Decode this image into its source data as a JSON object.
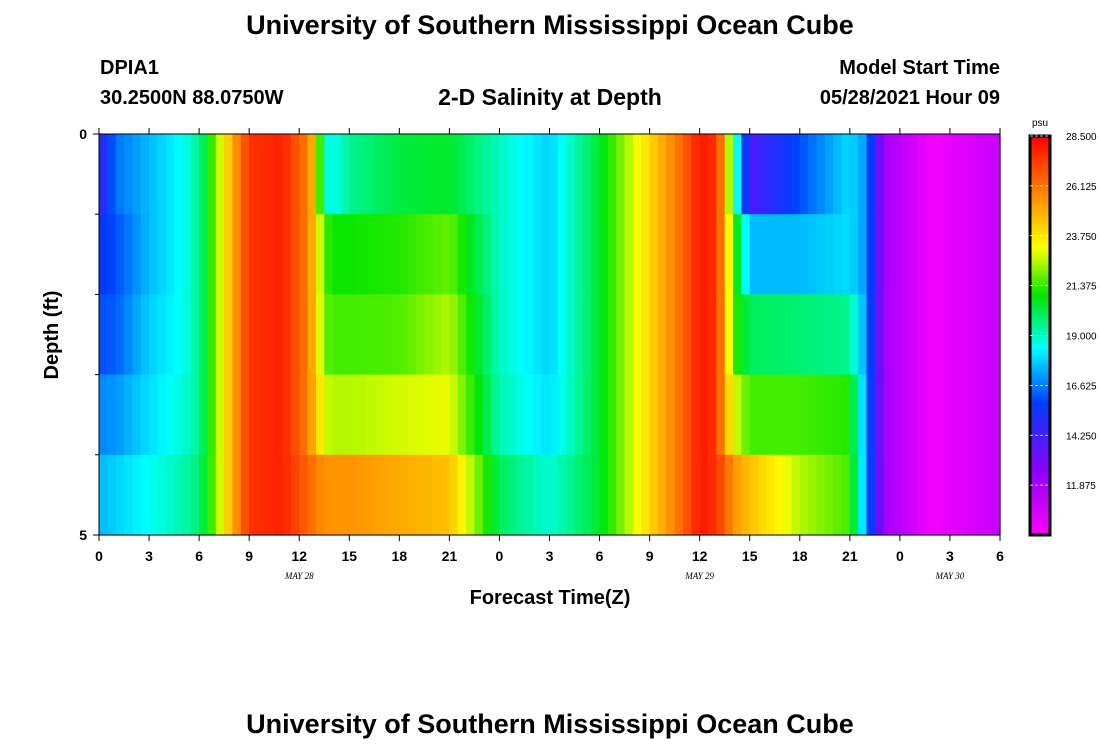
{
  "page": {
    "top_title": "University of Southern Mississippi Ocean Cube",
    "bottom_title": "University of Southern Mississippi Ocean Cube",
    "station": "DPIA1",
    "coords": "30.2500N  88.0750W",
    "chart_title": "2-D Salinity at Depth",
    "model_start_label": "Model Start Time",
    "model_start_value": "05/28/2021 Hour 09"
  },
  "chart_data": {
    "type": "heatmap",
    "title": "2-D Salinity at Depth",
    "xlabel": "Forecast Time(Z)",
    "ylabel": "Depth (ft)",
    "x_tick_labels": [
      "0",
      "3",
      "6",
      "9",
      "12",
      "15",
      "18",
      "21",
      "0",
      "3",
      "6",
      "9",
      "12",
      "15",
      "18",
      "21",
      "0",
      "3",
      "6"
    ],
    "x_tick_hours": [
      0,
      3,
      6,
      9,
      12,
      15,
      18,
      21,
      24,
      27,
      30,
      33,
      36,
      39,
      42,
      45,
      48,
      51,
      54
    ],
    "date_labels": [
      {
        "text": "MAY 28",
        "hour": 12
      },
      {
        "text": "MAY 29",
        "hour": 36
      },
      {
        "text": "MAY 30",
        "hour": 51
      }
    ],
    "x_range_hours": [
      0,
      54
    ],
    "y_tick_labels": [
      "0",
      "5"
    ],
    "y_range_ft": [
      0,
      5
    ],
    "y_minor_ticks": [
      1,
      2,
      3,
      4
    ],
    "depth_levels_ft": [
      0.5,
      1.5,
      2.5,
      3.5,
      4.5
    ],
    "colorbar": {
      "unit": "psu",
      "min": 9.5,
      "max": 28.5,
      "tick_values": [
        28.5,
        26.125,
        23.75,
        21.375,
        19.0,
        16.625,
        14.25,
        11.875
      ],
      "tick_labels": [
        "28.500",
        "26.125",
        "23.750",
        "21.375",
        "19.000",
        "16.625",
        "14.250",
        "11.875"
      ]
    },
    "salinity_series": [
      {
        "depth_ft": 0.5,
        "hours": [
          0,
          1,
          3,
          5,
          6,
          7,
          8,
          9,
          11,
          12.5,
          13,
          13.5,
          14,
          15,
          18,
          21,
          24,
          27,
          30,
          33,
          35,
          36,
          37,
          37.5,
          38,
          39,
          42,
          45,
          46,
          47,
          50,
          54
        ],
        "values": [
          14.5,
          16.5,
          17.5,
          18.5,
          19.5,
          22,
          25,
          27.5,
          27.8,
          26,
          24,
          19,
          18.5,
          19.5,
          20.3,
          20.5,
          19,
          17.8,
          20.5,
          24,
          26.5,
          28,
          27.5,
          25,
          20,
          14,
          16,
          18,
          17,
          12,
          9.8,
          11
        ]
      },
      {
        "depth_ft": 1.5,
        "hours": [
          0,
          1,
          3,
          5,
          6,
          7,
          8,
          9,
          11,
          12.5,
          13,
          13.5,
          14,
          15,
          18,
          21,
          24,
          27,
          30,
          33,
          35,
          36,
          37,
          37.5,
          38,
          39,
          42,
          45,
          46,
          47,
          50,
          54
        ],
        "values": [
          15.5,
          16,
          17.5,
          18.5,
          19.5,
          22,
          25,
          27.5,
          27.8,
          26,
          24,
          21.5,
          21,
          21,
          21.2,
          21.8,
          19,
          17.8,
          20.5,
          24,
          26.5,
          28,
          27.5,
          25,
          21.5,
          17.5,
          17.5,
          18,
          17,
          12,
          9.8,
          11
        ]
      },
      {
        "depth_ft": 2.5,
        "hours": [
          0,
          1,
          3,
          5,
          6,
          7,
          8,
          9,
          11,
          12.5,
          13,
          13.5,
          14,
          15,
          18,
          21,
          24,
          27,
          30,
          33,
          35,
          36,
          37,
          37.5,
          38,
          39,
          42,
          45,
          46,
          47,
          50,
          54
        ],
        "values": [
          16,
          16.2,
          17.8,
          18.5,
          19.5,
          22,
          25,
          27.5,
          27.8,
          26,
          24,
          21.8,
          21.5,
          21.5,
          21.6,
          22.5,
          19,
          17.8,
          20.5,
          24,
          26.5,
          28,
          27.5,
          25,
          21.5,
          20,
          19.8,
          19.5,
          17,
          12,
          9.8,
          11
        ]
      },
      {
        "depth_ft": 3.5,
        "hours": [
          0,
          1,
          3,
          5,
          6,
          7,
          8,
          9,
          11,
          12.5,
          13,
          13.5,
          14,
          15,
          18,
          21,
          24,
          27,
          30,
          33,
          35,
          36,
          37,
          37.5,
          38,
          39,
          42,
          45,
          46,
          47,
          50,
          54
        ],
        "values": [
          16.8,
          17,
          18,
          18.8,
          19.5,
          22,
          25,
          27.5,
          27.8,
          26,
          24.5,
          22.8,
          22.5,
          22.5,
          22.8,
          23,
          19.2,
          18,
          20.5,
          24,
          26.5,
          28,
          27.5,
          25,
          23,
          21.5,
          21.5,
          21.2,
          17,
          12,
          9.8,
          11
        ]
      },
      {
        "depth_ft": 4.5,
        "hours": [
          0,
          1,
          3,
          5,
          6,
          7,
          8,
          9,
          11,
          12.5,
          13,
          13.5,
          14,
          15,
          18,
          21,
          24,
          27,
          30,
          33,
          35,
          36,
          37,
          37.5,
          38,
          39,
          42,
          45,
          46,
          47,
          50,
          54
        ],
        "values": [
          17.5,
          17.8,
          18.5,
          19.2,
          19.8,
          22,
          25,
          27.5,
          27.8,
          26.5,
          26,
          25.5,
          25.5,
          25.5,
          25,
          24.5,
          20,
          18.8,
          20.5,
          24,
          26.5,
          28,
          27.5,
          26.5,
          25.5,
          24.5,
          22.5,
          21.5,
          17,
          12,
          9.8,
          11
        ]
      }
    ]
  }
}
